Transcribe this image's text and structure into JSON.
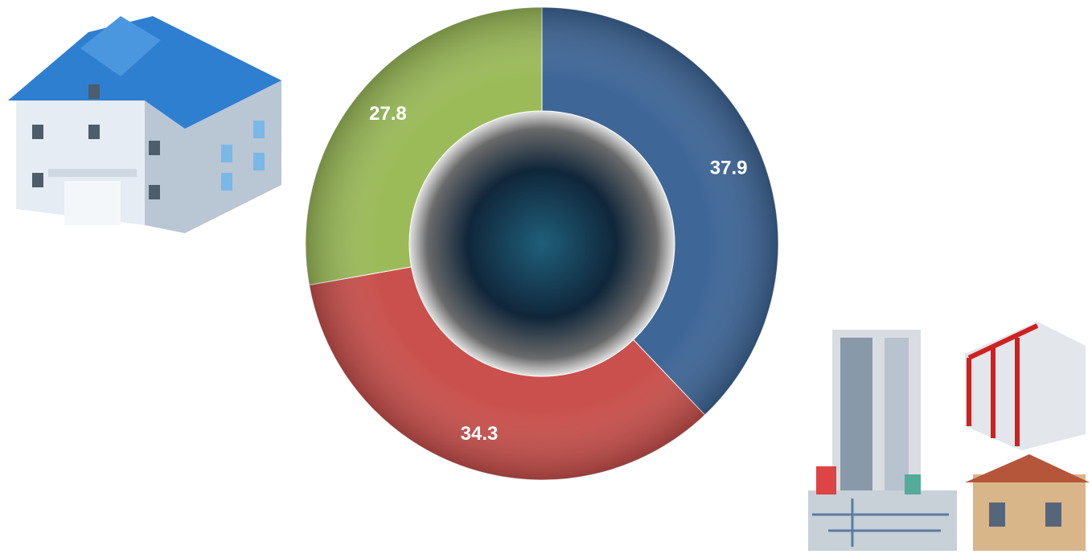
{
  "chart_data": {
    "type": "donut",
    "values": [
      37.9,
      34.3,
      27.8
    ],
    "colors": [
      "#3e6697",
      "#c9504c",
      "#9bbb59"
    ],
    "start": "top",
    "direction": "clockwise"
  }
}
